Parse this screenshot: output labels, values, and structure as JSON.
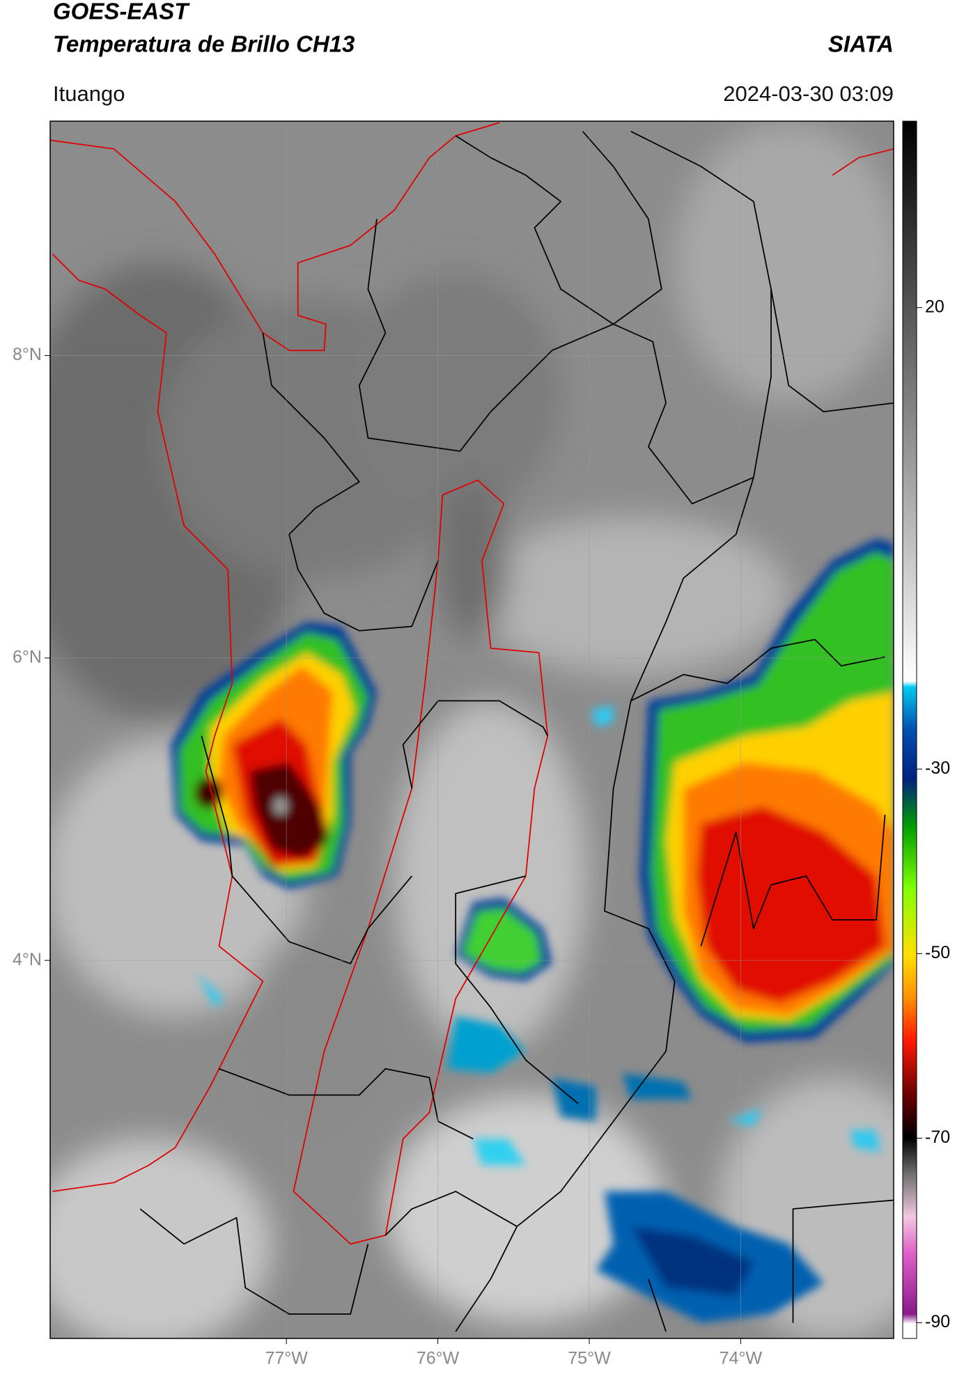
{
  "chart_data": {
    "type": "map",
    "title": "GOES-EAST",
    "subtitle": "Temperatura de Brillo CH13",
    "source": "SIATA",
    "location": "Ituango",
    "datetime": "2024-03-30 03:09",
    "xlim": [
      -78.56,
      -72.99
    ],
    "ylim": [
      1.5,
      9.55
    ],
    "xticks": [
      {
        "value": -77,
        "label": "77°W"
      },
      {
        "value": -76,
        "label": "76°W"
      },
      {
        "value": -75,
        "label": "75°W"
      },
      {
        "value": -74,
        "label": "74°W"
      }
    ],
    "yticks": [
      {
        "value": 4,
        "label": "4°N"
      },
      {
        "value": 6,
        "label": "6°N"
      },
      {
        "value": 8,
        "label": "8°N"
      }
    ],
    "colorbar": {
      "lim": [
        -91.7,
        40.2
      ],
      "ticks": [
        -90,
        -70,
        -50,
        -30,
        20
      ]
    },
    "grid": true
  }
}
